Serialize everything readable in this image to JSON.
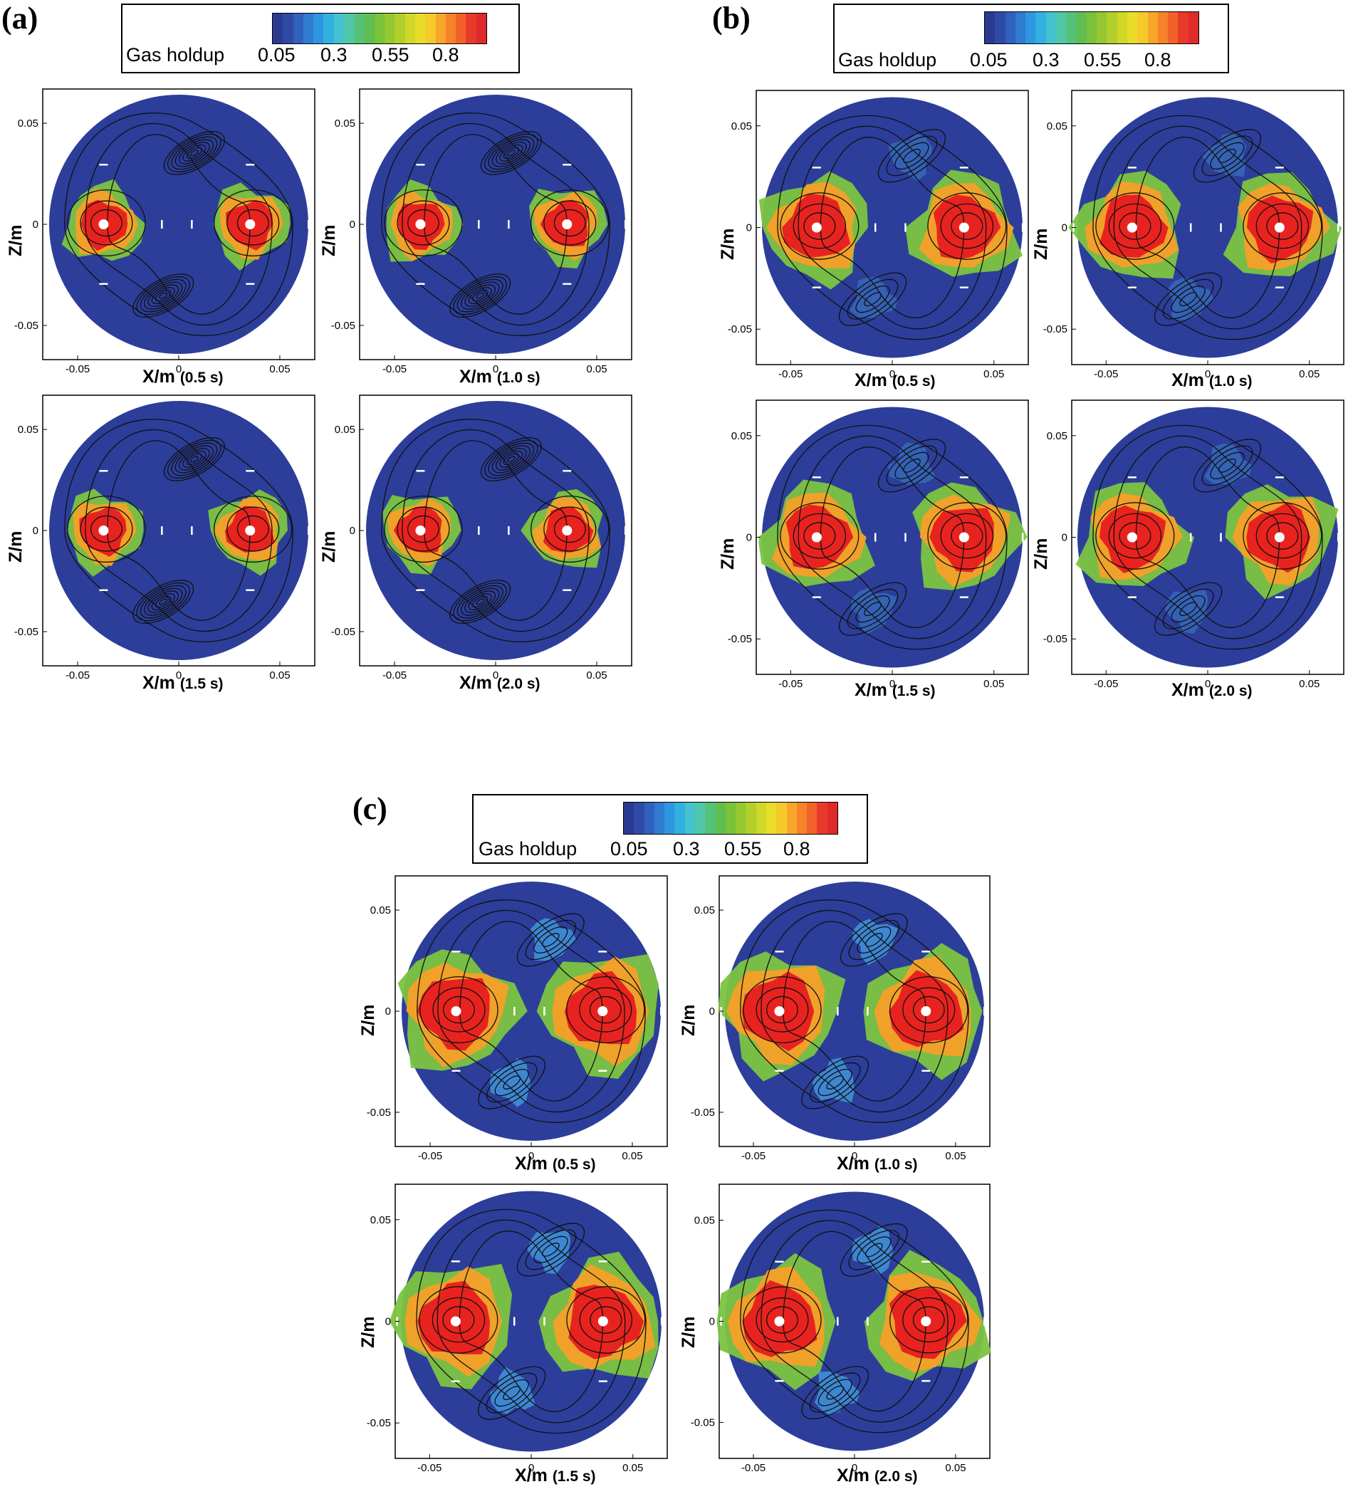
{
  "figure": {
    "groups": [
      {
        "label": "(a)",
        "legend": {
          "title": "Gas holdup",
          "ticks": [
            "0.05",
            "0.3",
            "0.55",
            "0.8"
          ]
        },
        "panels": [
          {
            "xlabel": "X/m",
            "time": "(0.5 s)",
            "ylabel": "Z/m"
          },
          {
            "xlabel": "X/m",
            "time": "(1.0 s)",
            "ylabel": "Z/m"
          },
          {
            "xlabel": "X/m",
            "time": "(1.5 s)",
            "ylabel": "Z/m"
          },
          {
            "xlabel": "X/m",
            "time": "(2.0 s)",
            "ylabel": "Z/m"
          }
        ]
      },
      {
        "label": "(b)",
        "legend": {
          "title": "Gas holdup",
          "ticks": [
            "0.05",
            "0.3",
            "0.55",
            "0.8"
          ]
        },
        "panels": [
          {
            "xlabel": "X/m",
            "time": "(0.5 s)",
            "ylabel": "Z/m"
          },
          {
            "xlabel": "X/m",
            "time": "(1.0 s)",
            "ylabel": "Z/m"
          },
          {
            "xlabel": "X/m",
            "time": "(1.5 s)",
            "ylabel": "Z/m"
          },
          {
            "xlabel": "X/m",
            "time": "(2.0 s)",
            "ylabel": "Z/m"
          }
        ]
      },
      {
        "label": "(c)",
        "legend": {
          "title": "Gas holdup",
          "ticks": [
            "0.05",
            "0.3",
            "0.55",
            "0.8"
          ]
        },
        "panels": [
          {
            "xlabel": "X/m",
            "time": "(0.5 s)",
            "ylabel": "Z/m"
          },
          {
            "xlabel": "X/m",
            "time": "(1.0 s)",
            "ylabel": "Z/m"
          },
          {
            "xlabel": "X/m",
            "time": "(1.5 s)",
            "ylabel": "Z/m"
          },
          {
            "xlabel": "X/m",
            "time": "(2.0 s)",
            "ylabel": "Z/m"
          }
        ]
      }
    ],
    "axis_ticks": {
      "x": [
        "-0.05",
        "0",
        "0.05"
      ],
      "y": [
        "0.05",
        "0",
        "-0.05"
      ]
    },
    "colormap": [
      "#2b3a91",
      "#2f4aa6",
      "#2f61bd",
      "#2f7bd1",
      "#2d97df",
      "#32b0e0",
      "#44c3cf",
      "#4fc7a8",
      "#55c27a",
      "#5fbe4f",
      "#79c23a",
      "#95c832",
      "#b2cf2c",
      "#d0d82a",
      "#e9dd2a",
      "#f6c92b",
      "#f8a62a",
      "#f6822a",
      "#f2612a",
      "#e83a2a",
      "#de2a2a"
    ],
    "colors": {
      "background": "#2c3e9a",
      "gas_high": "#e8231f",
      "gas_mid": "#f0a12a",
      "gas_low": "#7cc440",
      "streamline": "#111111"
    }
  }
}
